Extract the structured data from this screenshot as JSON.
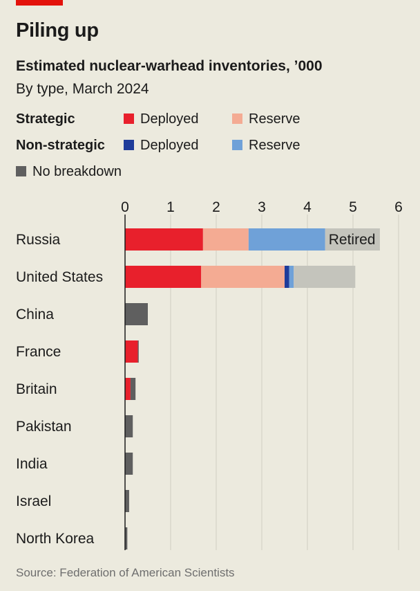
{
  "header": {
    "title": "Piling up",
    "subtitle": "Estimated nuclear-warhead inventories, ’000",
    "subtitle2": "By type, March 2024"
  },
  "legend": {
    "strategic_label": "Strategic",
    "nonstrategic_label": "Non-strategic",
    "deployed": "Deployed",
    "reserve": "Reserve",
    "no_breakdown": "No breakdown",
    "retired_label": "Retired"
  },
  "colors": {
    "background": "#eceade",
    "accent": "#e3120b",
    "strategic_deployed": "#e8202c",
    "strategic_reserve": "#f4ab93",
    "nonstrategic_deployed": "#1f3c9a",
    "nonstrategic_reserve": "#6fa1d8",
    "no_breakdown": "#5f5f5f",
    "retired": "#c4c4bc"
  },
  "source": "Source: Federation of American Scientists",
  "chart_data": {
    "type": "bar",
    "orientation": "horizontal",
    "stacked": true,
    "title": "Estimated nuclear-warhead inventories, ’000",
    "subtitle": "By type, March 2024",
    "xlim": [
      0,
      6
    ],
    "x_ticks": [
      0,
      1,
      2,
      3,
      4,
      5,
      6
    ],
    "grid": true,
    "categories": [
      "Russia",
      "United States",
      "China",
      "France",
      "Britain",
      "Pakistan",
      "India",
      "Israel",
      "North Korea"
    ],
    "series": [
      {
        "name": "Strategic Deployed",
        "color": "#e8202c",
        "values": [
          1.71,
          1.67,
          0,
          0.28,
          0.12,
          0,
          0,
          0,
          0
        ]
      },
      {
        "name": "Strategic Reserve",
        "color": "#f4ab93",
        "values": [
          1.0,
          1.83,
          0,
          0,
          0,
          0,
          0,
          0,
          0
        ]
      },
      {
        "name": "Non-strategic Deployed",
        "color": "#1f3c9a",
        "values": [
          0,
          0.1,
          0,
          0,
          0,
          0,
          0,
          0,
          0
        ]
      },
      {
        "name": "Non-strategic Reserve",
        "color": "#6fa1d8",
        "values": [
          1.68,
          0.1,
          0,
          0,
          0,
          0,
          0,
          0,
          0
        ]
      },
      {
        "name": "No breakdown",
        "color": "#5f5f5f",
        "values": [
          0,
          0,
          0.5,
          0.02,
          0.11,
          0.17,
          0.17,
          0.09,
          0.05
        ]
      },
      {
        "name": "Retired",
        "color": "#c4c4bc",
        "values": [
          1.2,
          1.35,
          0,
          0,
          0,
          0,
          0,
          0,
          0
        ]
      }
    ],
    "annotations": [
      {
        "category": "Russia",
        "series": "Retired",
        "text": "Retired"
      }
    ]
  }
}
